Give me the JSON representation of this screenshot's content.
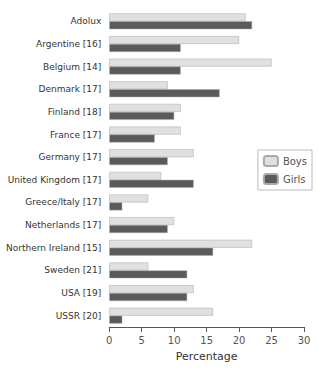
{
  "chart_data": {
    "type": "bar",
    "orientation": "horizontal",
    "categories": [
      "Adolux",
      "Argentine [16]",
      "Belgium [14]",
      "Denmark [17]",
      "Finland [18]",
      "France [17]",
      "Germany [17]",
      "United Kingdom [17]",
      "Greece/Italy [17]",
      "Netherlands [17]",
      "Northern Ireland [15]",
      "Sweden [21]",
      "USA [19]",
      "USSR [20]"
    ],
    "series": [
      {
        "name": "Boys",
        "color": "#e0e0e0",
        "values": [
          21,
          20,
          25,
          9,
          11,
          11,
          13,
          8,
          6,
          10,
          22,
          6,
          13,
          16
        ]
      },
      {
        "name": "Girls",
        "color": "#5a5a5a",
        "values": [
          22,
          11,
          11,
          17,
          10,
          7,
          9,
          13,
          2,
          9,
          16,
          12,
          12,
          2
        ]
      }
    ],
    "xlabel": "Percentage",
    "xlim": [
      0,
      30
    ],
    "xticks": [
      0,
      5,
      10,
      15,
      20,
      25,
      30
    ],
    "grid": false,
    "legend": "right"
  }
}
